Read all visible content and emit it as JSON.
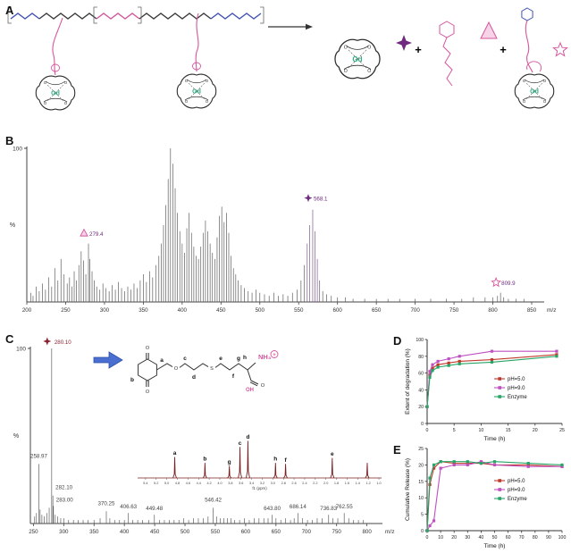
{
  "panels": {
    "a": "A",
    "b": "B",
    "c": "C",
    "d": "D",
    "e": "E"
  },
  "colors": {
    "spectrum": "#5f5f5f",
    "purple": "#6d2a7e",
    "pink": "#d4569e",
    "blue": "#4053b8",
    "ph5": "#c0392b",
    "ph9": "#c04fc0",
    "enzyme": "#27a567",
    "nmr": "#7a1f1f",
    "gd_green": "#2fae82"
  },
  "panel_a": {
    "gd": "Gd",
    "plus": "+",
    "o": "O"
  },
  "structure": {
    "labels": {
      "a": "a",
      "b": "b",
      "c": "c",
      "d": "d",
      "e": "e",
      "f": "f",
      "g": "g",
      "h": "h"
    },
    "atoms": {
      "o": "O",
      "s": "S",
      "oh": "OH",
      "nh3": "NH₃",
      "plus": "+"
    }
  },
  "chart_data": [
    {
      "id": "ms-b",
      "type": "line",
      "render": "sticks",
      "title": "",
      "xlabel": "m/z",
      "ylabel": "%",
      "ymax_label": "100",
      "xlim": [
        200,
        850
      ],
      "ylim": [
        0,
        100
      ],
      "xticks": [
        200,
        250,
        300,
        350,
        400,
        450,
        500,
        550,
        600,
        650,
        700,
        750,
        800,
        850
      ],
      "peaks": [
        [
          205,
          6
        ],
        [
          208,
          4
        ],
        [
          212,
          10
        ],
        [
          216,
          7
        ],
        [
          220,
          12
        ],
        [
          224,
          8
        ],
        [
          228,
          16
        ],
        [
          232,
          10
        ],
        [
          236,
          22
        ],
        [
          240,
          14
        ],
        [
          244,
          28
        ],
        [
          248,
          18
        ],
        [
          252,
          12
        ],
        [
          255,
          16
        ],
        [
          258,
          10
        ],
        [
          261,
          20
        ],
        [
          264,
          14
        ],
        [
          267,
          24
        ],
        [
          270,
          33
        ],
        [
          273,
          27
        ],
        [
          276,
          18
        ],
        [
          279.4,
          38
        ],
        [
          281,
          28
        ],
        [
          284,
          20
        ],
        [
          287,
          14
        ],
        [
          290,
          10
        ],
        [
          294,
          8
        ],
        [
          298,
          12
        ],
        [
          302,
          9
        ],
        [
          306,
          7
        ],
        [
          310,
          11
        ],
        [
          314,
          8
        ],
        [
          318,
          13
        ],
        [
          322,
          9
        ],
        [
          326,
          7
        ],
        [
          330,
          10
        ],
        [
          334,
          8
        ],
        [
          338,
          12
        ],
        [
          342,
          9
        ],
        [
          346,
          14
        ],
        [
          350,
          18
        ],
        [
          354,
          13
        ],
        [
          358,
          20
        ],
        [
          362,
          16
        ],
        [
          366,
          24
        ],
        [
          370,
          30
        ],
        [
          373,
          38
        ],
        [
          376,
          50
        ],
        [
          379,
          63
        ],
        [
          382,
          80
        ],
        [
          385,
          100
        ],
        [
          388,
          90
        ],
        [
          391,
          74
        ],
        [
          394,
          58
        ],
        [
          397,
          46
        ],
        [
          400,
          38
        ],
        [
          403,
          32
        ],
        [
          406,
          48
        ],
        [
          409,
          58
        ],
        [
          412,
          45
        ],
        [
          415,
          36
        ],
        [
          418,
          30
        ],
        [
          421,
          28
        ],
        [
          424,
          36
        ],
        [
          427,
          45
        ],
        [
          430,
          53
        ],
        [
          433,
          46
        ],
        [
          436,
          38
        ],
        [
          439,
          32
        ],
        [
          442,
          28
        ],
        [
          445,
          42
        ],
        [
          448,
          56
        ],
        [
          451,
          62
        ],
        [
          454,
          52
        ],
        [
          457,
          58
        ],
        [
          460,
          45
        ],
        [
          463,
          30
        ],
        [
          466,
          22
        ],
        [
          469,
          18
        ],
        [
          472,
          14
        ],
        [
          476,
          11
        ],
        [
          480,
          9
        ],
        [
          485,
          7
        ],
        [
          490,
          6
        ],
        [
          495,
          8
        ],
        [
          500,
          6
        ],
        [
          506,
          5
        ],
        [
          512,
          4
        ],
        [
          518,
          6
        ],
        [
          524,
          4
        ],
        [
          530,
          5
        ],
        [
          536,
          4
        ],
        [
          542,
          6
        ],
        [
          548,
          8
        ],
        [
          553,
          14
        ],
        [
          557,
          24
        ],
        [
          561,
          38,
          "#7a5a8c"
        ],
        [
          564,
          50,
          "#7a5a8c"
        ],
        [
          568.1,
          60,
          "#7a5a8c"
        ],
        [
          571,
          46,
          "#7a5a8c"
        ],
        [
          574,
          28,
          "#7a5a8c"
        ],
        [
          577,
          14
        ],
        [
          581,
          7
        ],
        [
          586,
          5
        ],
        [
          592,
          4
        ],
        [
          600,
          3
        ],
        [
          610,
          3
        ],
        [
          620,
          2
        ],
        [
          635,
          2
        ],
        [
          650,
          2
        ],
        [
          665,
          2
        ],
        [
          680,
          2
        ],
        [
          700,
          2
        ],
        [
          720,
          2
        ],
        [
          740,
          2
        ],
        [
          760,
          2
        ],
        [
          775,
          3
        ],
        [
          790,
          3
        ],
        [
          800,
          3
        ],
        [
          806,
          4
        ],
        [
          809.9,
          6
        ],
        [
          814,
          3
        ],
        [
          820,
          2
        ],
        [
          830,
          2
        ],
        [
          840,
          2
        ]
      ],
      "annotations": [
        {
          "text": "279.4",
          "x": 279.4,
          "y": 40,
          "symbol": "triangle",
          "color": "#6d2a7e",
          "symcolor": "#d4569e"
        },
        {
          "text": "568.1",
          "x": 568.1,
          "y": 63,
          "symbol": "star4",
          "color": "#6d2a7e",
          "symcolor": "#6d2a7e"
        },
        {
          "text": "809.9",
          "x": 809.9,
          "y": 8,
          "symbol": "star5",
          "color": "#6d2a7e",
          "symcolor": "#d4569e"
        }
      ]
    },
    {
      "id": "ms-c",
      "type": "line",
      "render": "sticks",
      "title": "",
      "xlabel": "m/z",
      "ylabel": "%",
      "ymax_label": "100",
      "xlim": [
        245,
        805
      ],
      "ylim": [
        0,
        100
      ],
      "xticks": [
        250,
        300,
        350,
        400,
        450,
        500,
        550,
        600,
        650,
        700,
        750,
        800
      ],
      "peaks": [
        [
          252,
          4
        ],
        [
          255,
          6
        ],
        [
          258.97,
          34
        ],
        [
          261,
          8
        ],
        [
          264,
          5
        ],
        [
          268,
          4
        ],
        [
          272,
          6
        ],
        [
          276,
          9
        ],
        [
          280.1,
          100
        ],
        [
          282.1,
          16
        ],
        [
          283,
          10
        ],
        [
          286,
          5
        ],
        [
          290,
          4
        ],
        [
          295,
          3
        ],
        [
          300,
          3
        ],
        [
          308,
          2
        ],
        [
          316,
          2
        ],
        [
          324,
          2
        ],
        [
          332,
          2
        ],
        [
          340,
          2
        ],
        [
          350,
          2
        ],
        [
          360,
          3
        ],
        [
          370.25,
          7
        ],
        [
          376,
          3
        ],
        [
          384,
          2
        ],
        [
          392,
          2
        ],
        [
          400,
          2
        ],
        [
          406.63,
          6
        ],
        [
          414,
          2
        ],
        [
          422,
          2
        ],
        [
          430,
          2
        ],
        [
          440,
          2
        ],
        [
          449.48,
          5
        ],
        [
          458,
          2
        ],
        [
          466,
          2
        ],
        [
          474,
          2
        ],
        [
          482,
          2
        ],
        [
          490,
          2
        ],
        [
          498,
          3
        ],
        [
          506,
          2
        ],
        [
          514,
          3
        ],
        [
          522,
          3
        ],
        [
          530,
          3
        ],
        [
          538,
          4
        ],
        [
          546.42,
          9
        ],
        [
          552,
          4
        ],
        [
          558,
          3
        ],
        [
          564,
          3
        ],
        [
          570,
          3
        ],
        [
          576,
          3
        ],
        [
          582,
          2
        ],
        [
          590,
          2
        ],
        [
          598,
          3
        ],
        [
          606,
          2
        ],
        [
          614,
          3
        ],
        [
          622,
          3
        ],
        [
          630,
          3
        ],
        [
          637,
          3
        ],
        [
          643.8,
          5
        ],
        [
          650,
          3
        ],
        [
          658,
          2
        ],
        [
          666,
          3
        ],
        [
          674,
          2
        ],
        [
          680,
          3
        ],
        [
          686.14,
          6
        ],
        [
          694,
          3
        ],
        [
          702,
          2
        ],
        [
          710,
          2
        ],
        [
          718,
          3
        ],
        [
          726,
          3
        ],
        [
          736.83,
          5
        ],
        [
          744,
          3
        ],
        [
          752,
          3
        ],
        [
          762.55,
          6
        ],
        [
          770,
          3
        ],
        [
          778,
          2
        ],
        [
          786,
          2
        ],
        [
          794,
          2
        ]
      ],
      "annotations": [
        {
          "text": "258.97",
          "x": 258.97,
          "y": 35,
          "color": "#444"
        },
        {
          "text": "280.10",
          "x": 280.1,
          "y": 100,
          "symbol": "star4",
          "color": "#8b2430",
          "symcolor": "#8b2430",
          "dx": 2
        },
        {
          "text": "282.10",
          "x": 282.1,
          "y": 17,
          "anchor": "start",
          "dx": 3,
          "color": "#444"
        },
        {
          "text": "283.00",
          "x": 283,
          "y": 10,
          "anchor": "start",
          "dx": 3,
          "color": "#444"
        },
        {
          "text": "370.25",
          "x": 370.25,
          "y": 8,
          "color": "#444"
        },
        {
          "text": "406.63",
          "x": 406.63,
          "y": 6,
          "color": "#444"
        },
        {
          "text": "449.48",
          "x": 449.48,
          "y": 5,
          "color": "#444"
        },
        {
          "text": "546.42",
          "x": 546.42,
          "y": 10,
          "color": "#444"
        },
        {
          "text": "643.80",
          "x": 643.8,
          "y": 5,
          "color": "#444"
        },
        {
          "text": "686.14",
          "x": 686.14,
          "y": 6,
          "color": "#444"
        },
        {
          "text": "736.83",
          "x": 736.83,
          "y": 5,
          "color": "#444"
        },
        {
          "text": "762.55",
          "x": 762.55,
          "y": 6,
          "color": "#444"
        }
      ]
    },
    {
      "id": "nmr",
      "type": "line",
      "render": "nmr",
      "xlabel": "f1 (ppm)",
      "xlim": [
        5.55,
        0.95
      ],
      "xticks": [
        5.4,
        5.2,
        5.0,
        4.8,
        4.6,
        4.4,
        4.2,
        4.0,
        3.8,
        3.6,
        3.4,
        3.2,
        3.0,
        2.8,
        2.6,
        2.4,
        2.2,
        2.0,
        1.8,
        1.6,
        1.4,
        1.2,
        1.0
      ],
      "peaks": [
        {
          "ppm": 4.85,
          "h": 42,
          "label": "a"
        },
        {
          "ppm": 4.28,
          "h": 30,
          "label": "b"
        },
        {
          "ppm": 3.82,
          "h": 24,
          "label": "g"
        },
        {
          "ppm": 3.62,
          "h": 62,
          "label": "c"
        },
        {
          "ppm": 3.47,
          "h": 74,
          "label": "d"
        },
        {
          "ppm": 2.95,
          "h": 30,
          "label": "h"
        },
        {
          "ppm": 2.76,
          "h": 28,
          "label": "f"
        },
        {
          "ppm": 1.88,
          "h": 40,
          "label": "e"
        },
        {
          "ppm": 1.22,
          "h": 30,
          "label": ""
        }
      ]
    },
    {
      "id": "degradation",
      "type": "line",
      "render": "xy",
      "xlabel": "Time (h)",
      "ylabel": "Extent of degradation (%)",
      "xlim": [
        0,
        25
      ],
      "ylim": [
        0,
        100
      ],
      "xticks": [
        0,
        5,
        10,
        15,
        20,
        25
      ],
      "yticks": [
        0,
        20,
        40,
        60,
        80,
        100
      ],
      "x": [
        0,
        0.5,
        1,
        2,
        4,
        6,
        12,
        24
      ],
      "series": [
        {
          "name": "pH=5.0",
          "color": "#c0392b",
          "values": [
            20,
            58,
            66,
            70,
            72,
            74,
            76,
            82
          ]
        },
        {
          "name": "pH=9.0",
          "color": "#c04fc0",
          "values": [
            20,
            62,
            70,
            74,
            77,
            80,
            86,
            86
          ]
        },
        {
          "name": "Enzyme",
          "color": "#27a567",
          "values": [
            20,
            55,
            63,
            67,
            69,
            71,
            73,
            80
          ]
        }
      ],
      "legend_xy": [
        103,
        50
      ],
      "legend_position": "right-middle"
    },
    {
      "id": "release",
      "type": "line",
      "render": "xy",
      "xlabel": "Time (h)",
      "ylabel": "Cumulative Release (%)",
      "xlim": [
        0,
        100
      ],
      "ylim": [
        0,
        25
      ],
      "xticks": [
        0,
        10,
        20,
        30,
        40,
        50,
        60,
        70,
        80,
        90,
        100
      ],
      "yticks": [
        0,
        5,
        10,
        15,
        20,
        25
      ],
      "x": [
        0,
        2,
        5,
        10,
        20,
        30,
        40,
        50,
        75,
        100
      ],
      "series": [
        {
          "name": "pH=5.0",
          "color": "#c0392b",
          "values": [
            0,
            14,
            19,
            21,
            20.5,
            20.5,
            20.5,
            20,
            20,
            19.5
          ]
        },
        {
          "name": "pH=9.0",
          "color": "#c04fc0",
          "values": [
            0,
            1.5,
            3,
            19,
            20,
            20,
            21,
            20,
            19.5,
            19.5
          ]
        },
        {
          "name": "Enzyme",
          "color": "#27a567",
          "values": [
            0,
            16,
            20,
            21,
            21,
            21,
            20.5,
            21,
            20.5,
            20
          ]
        }
      ],
      "legend_xy": [
        103,
        42
      ],
      "legend_position": "right-middle"
    }
  ]
}
